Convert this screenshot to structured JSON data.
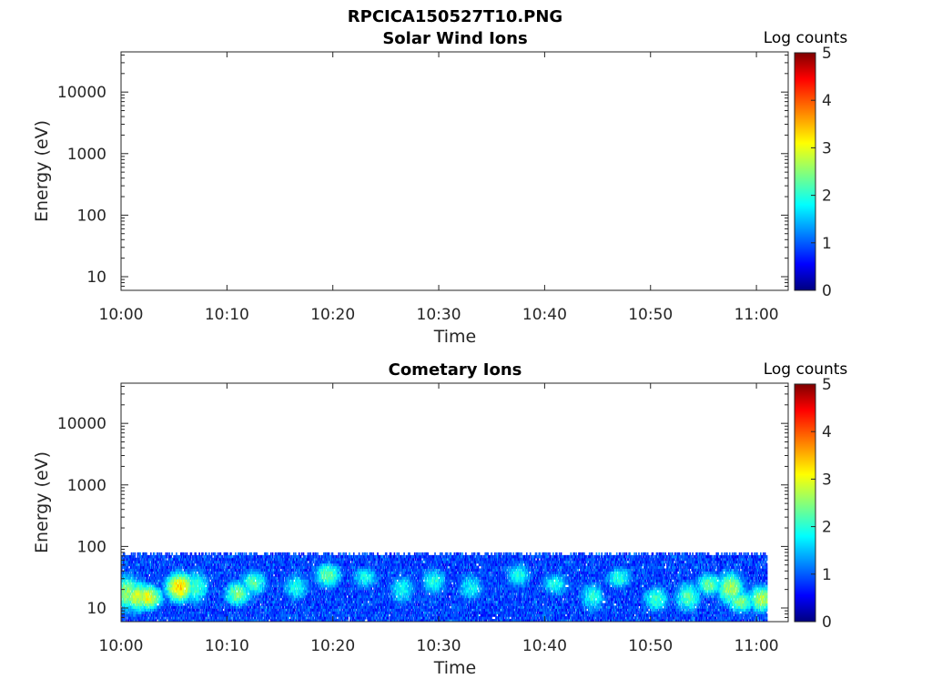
{
  "figure_title": "RPCICA150527T10.PNG",
  "chart_data": [
    {
      "type": "heatmap",
      "title": "Solar Wind Ions",
      "xlabel": "Time",
      "ylabel": "Energy (eV)",
      "x_ticks": [
        "10:00",
        "10:10",
        "10:20",
        "10:30",
        "10:40",
        "10:50",
        "11:00"
      ],
      "xlim": [
        "10:00",
        "11:03"
      ],
      "y_scale": "log",
      "y_ticks": [
        "10",
        "100",
        "1000",
        "10000"
      ],
      "ylim": [
        6,
        45000
      ],
      "colorbar": {
        "label": "Log counts",
        "ticks": [
          "0",
          "1",
          "2",
          "3",
          "4",
          "5"
        ],
        "range": [
          0,
          5
        ],
        "colormap": "jet"
      },
      "bands": []
    },
    {
      "type": "heatmap",
      "title": "Cometary Ions",
      "xlabel": "Time",
      "ylabel": "Energy (eV)",
      "x_ticks": [
        "10:00",
        "10:10",
        "10:20",
        "10:30",
        "10:40",
        "10:50",
        "11:00"
      ],
      "xlim": [
        "10:00",
        "11:03"
      ],
      "y_scale": "log",
      "y_ticks": [
        "10",
        "100",
        "1000",
        "10000"
      ],
      "ylim": [
        6,
        45000
      ],
      "colorbar": {
        "label": "Log counts",
        "ticks": [
          "0",
          "1",
          "2",
          "3",
          "4",
          "5"
        ],
        "range": [
          0,
          5
        ],
        "colormap": "jet"
      },
      "data_time_range": [
        "10:00",
        "11:01"
      ],
      "energy_range_eV": [
        6,
        80
      ],
      "bands": [
        {
          "t": "10:00.5",
          "e_lo": 8,
          "e_hi": 40,
          "level": 2.6
        },
        {
          "t": "10:01.5",
          "e_lo": 8,
          "e_hi": 30,
          "level": 2.9
        },
        {
          "t": "10:02.5",
          "e_lo": 9,
          "e_hi": 25,
          "level": 3.1
        },
        {
          "t": "10:05.5",
          "e_lo": 12,
          "e_hi": 40,
          "level": 3.4
        },
        {
          "t": "10:07.0",
          "e_lo": 10,
          "e_hi": 50,
          "level": 2.2
        },
        {
          "t": "10:11.0",
          "e_lo": 10,
          "e_hi": 30,
          "level": 2.5
        },
        {
          "t": "10:12.5",
          "e_lo": 15,
          "e_hi": 45,
          "level": 2.3
        },
        {
          "t": "10:16.5",
          "e_lo": 12,
          "e_hi": 40,
          "level": 2.0
        },
        {
          "t": "10:19.5",
          "e_lo": 20,
          "e_hi": 60,
          "level": 2.4
        },
        {
          "t": "10:23.0",
          "e_lo": 20,
          "e_hi": 50,
          "level": 2.0
        },
        {
          "t": "10:26.5",
          "e_lo": 10,
          "e_hi": 40,
          "level": 1.9
        },
        {
          "t": "10:29.5",
          "e_lo": 15,
          "e_hi": 50,
          "level": 2.0
        },
        {
          "t": "10:33.0",
          "e_lo": 12,
          "e_hi": 40,
          "level": 1.9
        },
        {
          "t": "10:37.5",
          "e_lo": 20,
          "e_hi": 60,
          "level": 2.0
        },
        {
          "t": "10:41.0",
          "e_lo": 15,
          "e_hi": 40,
          "level": 2.0
        },
        {
          "t": "10:44.5",
          "e_lo": 8,
          "e_hi": 30,
          "level": 2.0
        },
        {
          "t": "10:47.0",
          "e_lo": 20,
          "e_hi": 50,
          "level": 2.1
        },
        {
          "t": "10:50.5",
          "e_lo": 8,
          "e_hi": 25,
          "level": 2.2
        },
        {
          "t": "10:53.5",
          "e_lo": 8,
          "e_hi": 30,
          "level": 2.3
        },
        {
          "t": "10:55.5",
          "e_lo": 15,
          "e_hi": 40,
          "level": 2.4
        },
        {
          "t": "10:57.5",
          "e_lo": 10,
          "e_hi": 45,
          "level": 2.7
        },
        {
          "t": "10:58.5",
          "e_lo": 8,
          "e_hi": 20,
          "level": 2.5
        },
        {
          "t": "11:00.5",
          "e_lo": 8,
          "e_hi": 25,
          "level": 2.8
        }
      ]
    }
  ]
}
